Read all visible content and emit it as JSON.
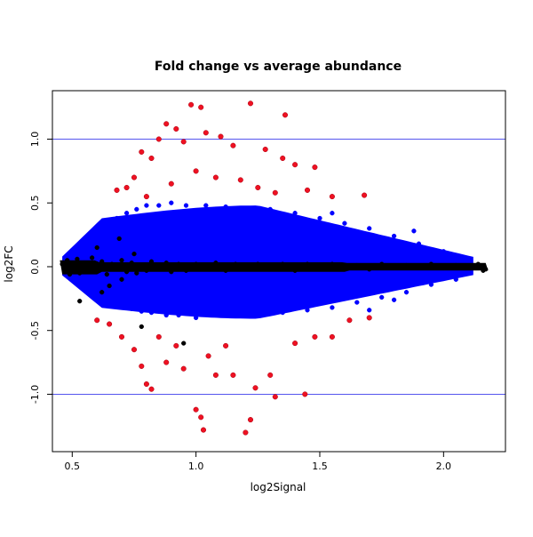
{
  "chart_data": {
    "type": "scatter",
    "title": "Fold change vs average abundance",
    "xlabel": "log2Signal",
    "ylabel": "log2FC",
    "xlim": [
      0.42,
      2.25
    ],
    "ylim": [
      -1.45,
      1.38
    ],
    "xticks": [
      {
        "value": 0.5,
        "label": "0.5"
      },
      {
        "value": 1.0,
        "label": "1.0"
      },
      {
        "value": 1.5,
        "label": "1.5"
      },
      {
        "value": 2.0,
        "label": "2.0"
      }
    ],
    "yticks": [
      {
        "value": -1.0,
        "label": "-1.0"
      },
      {
        "value": -0.5,
        "label": "-0.5"
      },
      {
        "value": 0.0,
        "label": "0.0"
      },
      {
        "value": 0.5,
        "label": "0.5"
      },
      {
        "value": 1.0,
        "label": "1.0"
      }
    ],
    "hlines": [
      {
        "y": 1.0,
        "color": "#5555ee"
      },
      {
        "y": -1.0,
        "color": "#5555ee"
      }
    ],
    "grid": false,
    "legend": "none",
    "series": [
      {
        "color": "#000000",
        "description_role": "near-zero fold change",
        "points": [
          [
            0.46,
            0.02
          ],
          [
            0.47,
            -0.03
          ],
          [
            0.48,
            0.05
          ],
          [
            0.49,
            -0.06
          ],
          [
            0.5,
            0.03
          ],
          [
            0.51,
            -0.02
          ],
          [
            0.52,
            0.06
          ],
          [
            0.53,
            -0.05
          ],
          [
            0.55,
            0.01
          ],
          [
            0.57,
            -0.04
          ],
          [
            0.58,
            0.07
          ],
          [
            0.6,
            -0.03
          ],
          [
            0.62,
            0.04
          ],
          [
            0.64,
            -0.06
          ],
          [
            0.66,
            0.02
          ],
          [
            0.68,
            -0.02
          ],
          [
            0.7,
            0.05
          ],
          [
            0.72,
            -0.04
          ],
          [
            0.74,
            0.03
          ],
          [
            0.76,
            -0.05
          ],
          [
            0.78,
            0.01
          ],
          [
            0.8,
            -0.03
          ],
          [
            0.82,
            0.04
          ],
          [
            0.85,
            -0.02
          ],
          [
            0.88,
            0.03
          ],
          [
            0.9,
            -0.04
          ],
          [
            0.93,
            0.02
          ],
          [
            0.96,
            -0.03
          ],
          [
            1.0,
            0.02
          ],
          [
            1.04,
            -0.02
          ],
          [
            1.08,
            0.03
          ],
          [
            1.12,
            -0.03
          ],
          [
            1.16,
            0.02
          ],
          [
            1.2,
            -0.02
          ],
          [
            1.25,
            0.02
          ],
          [
            1.3,
            -0.02
          ],
          [
            1.35,
            0.02
          ],
          [
            1.4,
            -0.03
          ],
          [
            1.45,
            0.02
          ],
          [
            1.5,
            -0.02
          ],
          [
            1.55,
            0.02
          ],
          [
            1.6,
            -0.02
          ],
          [
            1.65,
            0.01
          ],
          [
            1.7,
            -0.02
          ],
          [
            1.75,
            0.02
          ],
          [
            1.8,
            -0.01
          ],
          [
            1.85,
            0.01
          ],
          [
            1.9,
            0.0
          ],
          [
            1.95,
            0.02
          ],
          [
            2.0,
            -0.01
          ],
          [
            2.05,
            0.01
          ],
          [
            2.1,
            0.0
          ],
          [
            2.14,
            0.02
          ],
          [
            2.16,
            -0.03
          ],
          [
            2.17,
            -0.02
          ],
          [
            0.53,
            -0.27
          ],
          [
            0.62,
            -0.2
          ],
          [
            0.78,
            -0.47
          ],
          [
            0.69,
            0.22
          ],
          [
            0.6,
            0.15
          ],
          [
            0.65,
            -0.15
          ],
          [
            0.7,
            -0.1
          ],
          [
            0.75,
            0.1
          ],
          [
            0.95,
            -0.6
          ]
        ]
      },
      {
        "color": "#0000ff",
        "description_role": "moderate fold change",
        "points": [
          [
            0.5,
            0.1
          ],
          [
            0.52,
            -0.12
          ],
          [
            0.55,
            0.18
          ],
          [
            0.56,
            -0.2
          ],
          [
            0.58,
            0.25
          ],
          [
            0.6,
            -0.25
          ],
          [
            0.62,
            0.3
          ],
          [
            0.63,
            -0.28
          ],
          [
            0.65,
            0.35
          ],
          [
            0.66,
            -0.3
          ],
          [
            0.68,
            0.38
          ],
          [
            0.7,
            -0.32
          ],
          [
            0.72,
            0.42
          ],
          [
            0.74,
            -0.33
          ],
          [
            0.76,
            0.45
          ],
          [
            0.78,
            -0.35
          ],
          [
            0.8,
            0.48
          ],
          [
            0.82,
            -0.36
          ],
          [
            0.85,
            0.48
          ],
          [
            0.88,
            -0.38
          ],
          [
            0.9,
            0.5
          ],
          [
            0.93,
            -0.38
          ],
          [
            0.96,
            0.48
          ],
          [
            1.0,
            -0.4
          ],
          [
            1.04,
            0.48
          ],
          [
            1.08,
            -0.38
          ],
          [
            1.12,
            0.47
          ],
          [
            1.16,
            -0.38
          ],
          [
            1.2,
            0.45
          ],
          [
            1.25,
            -0.38
          ],
          [
            1.3,
            0.45
          ],
          [
            1.35,
            -0.36
          ],
          [
            1.4,
            0.42
          ],
          [
            1.45,
            -0.34
          ],
          [
            1.5,
            0.38
          ],
          [
            1.55,
            -0.32
          ],
          [
            1.6,
            0.34
          ],
          [
            1.65,
            -0.28
          ],
          [
            1.7,
            0.3
          ],
          [
            1.75,
            -0.24
          ],
          [
            1.8,
            0.24
          ],
          [
            1.85,
            -0.2
          ],
          [
            1.9,
            0.18
          ],
          [
            1.95,
            -0.14
          ],
          [
            2.0,
            0.12
          ],
          [
            2.05,
            -0.1
          ],
          [
            2.1,
            0.06
          ],
          [
            1.88,
            0.28
          ],
          [
            1.8,
            -0.26
          ],
          [
            1.7,
            -0.34
          ],
          [
            1.55,
            0.42
          ]
        ]
      },
      {
        "color": "#ee1122",
        "description_role": "large fold change",
        "points": [
          [
            0.98,
            1.27
          ],
          [
            1.02,
            1.25
          ],
          [
            1.22,
            1.28
          ],
          [
            1.36,
            1.19
          ],
          [
            0.88,
            1.12
          ],
          [
            0.92,
            1.08
          ],
          [
            1.04,
            1.05
          ],
          [
            1.1,
            1.02
          ],
          [
            0.85,
            1.0
          ],
          [
            0.95,
            0.98
          ],
          [
            1.15,
            0.95
          ],
          [
            1.28,
            0.92
          ],
          [
            1.35,
            0.85
          ],
          [
            1.4,
            0.8
          ],
          [
            1.48,
            0.78
          ],
          [
            0.78,
            0.9
          ],
          [
            0.82,
            0.85
          ],
          [
            0.75,
            0.7
          ],
          [
            0.72,
            0.62
          ],
          [
            0.68,
            0.6
          ],
          [
            0.8,
            0.55
          ],
          [
            0.9,
            0.65
          ],
          [
            1.0,
            0.75
          ],
          [
            1.08,
            0.7
          ],
          [
            1.18,
            0.68
          ],
          [
            1.25,
            0.62
          ],
          [
            1.32,
            0.58
          ],
          [
            1.45,
            0.6
          ],
          [
            1.55,
            0.55
          ],
          [
            1.68,
            0.56
          ],
          [
            0.6,
            -0.42
          ],
          [
            0.65,
            -0.45
          ],
          [
            0.7,
            -0.55
          ],
          [
            0.75,
            -0.65
          ],
          [
            0.78,
            -0.78
          ],
          [
            0.8,
            -0.92
          ],
          [
            0.82,
            -0.96
          ],
          [
            0.88,
            -0.75
          ],
          [
            0.95,
            -0.8
          ],
          [
            1.0,
            -1.12
          ],
          [
            1.02,
            -1.18
          ],
          [
            1.03,
            -1.28
          ],
          [
            1.08,
            -0.85
          ],
          [
            1.15,
            -0.85
          ],
          [
            1.2,
            -1.3
          ],
          [
            1.22,
            -1.2
          ],
          [
            1.24,
            -0.95
          ],
          [
            1.3,
            -0.85
          ],
          [
            1.32,
            -1.02
          ],
          [
            1.44,
            -1.0
          ],
          [
            1.4,
            -0.6
          ],
          [
            1.48,
            -0.55
          ],
          [
            1.55,
            -0.55
          ],
          [
            1.62,
            -0.42
          ],
          [
            1.7,
            -0.4
          ],
          [
            1.12,
            -0.62
          ],
          [
            1.05,
            -0.7
          ],
          [
            0.92,
            -0.62
          ],
          [
            0.85,
            -0.55
          ]
        ]
      }
    ]
  }
}
